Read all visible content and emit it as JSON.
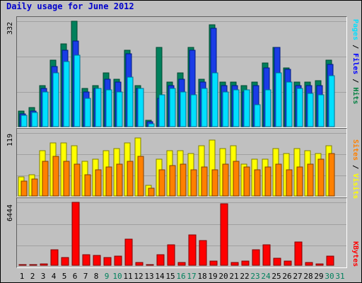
{
  "chart_data": {
    "type": "bar",
    "title": "Daily usage for June 2012",
    "categories": [
      "1",
      "2",
      "3",
      "4",
      "5",
      "6",
      "7",
      "8",
      "9",
      "10",
      "11",
      "12",
      "13",
      "14",
      "15",
      "16",
      "17",
      "18",
      "19",
      "20",
      "21",
      "22",
      "23",
      "24",
      "25",
      "26",
      "27",
      "28",
      "29",
      "30",
      "31"
    ],
    "weekend_days": [
      "9",
      "10",
      "16",
      "17",
      "23",
      "24",
      "30",
      "31"
    ],
    "panels": [
      {
        "id": "hits-files-pages",
        "ymax": 332,
        "legend": [
          {
            "label": "Pages",
            "color": "#00e0ff"
          },
          {
            "label": "Files",
            "color": "#0000ff"
          },
          {
            "label": "Hits",
            "color": "#008040"
          }
        ],
        "series": [
          {
            "name": "Hits",
            "color": "#00805c",
            "values": [
              50,
              60,
              130,
              210,
              260,
              332,
              120,
              130,
              170,
              150,
              240,
              130,
              20,
              250,
              140,
              170,
              250,
              150,
              320,
              140,
              140,
              130,
              140,
              200,
              250,
              185,
              140,
              140,
              145,
              210,
              0
            ]
          },
          {
            "name": "Files",
            "color": "#1a3ce6",
            "values": [
              40,
              50,
              120,
              190,
              240,
              270,
              110,
              120,
              150,
              140,
              230,
              120,
              15,
              90,
              130,
              150,
              240,
              140,
              310,
              130,
              130,
              110,
              130,
              185,
              250,
              180,
              130,
              130,
              130,
              195,
              0
            ]
          },
          {
            "name": "Pages",
            "color": "#00e0ff",
            "values": [
              35,
              45,
              110,
              170,
              205,
              225,
              90,
              120,
              115,
              110,
              155,
              120,
              10,
              100,
              120,
              110,
              100,
              120,
              170,
              110,
              115,
              115,
              70,
              115,
              170,
              140,
              120,
              105,
              100,
              160,
              0
            ]
          }
        ]
      },
      {
        "id": "visits-sites",
        "ymax": 119,
        "legend": [
          {
            "label": "Sites",
            "color": "#ff8000"
          },
          {
            "label": "Visits",
            "color": "#ffff00"
          }
        ],
        "series": [
          {
            "name": "Visits",
            "color": "#ffff00",
            "values": [
              36,
              40,
              85,
              100,
              100,
              95,
              65,
              70,
              85,
              90,
              100,
              110,
              20,
              70,
              85,
              85,
              80,
              95,
              105,
              90,
              95,
              60,
              70,
              70,
              90,
              80,
              90,
              85,
              80,
              95,
              0
            ]
          },
          {
            "name": "Sites",
            "color": "#ff8000",
            "values": [
              28,
              32,
              65,
              75,
              65,
              60,
              40,
              50,
              55,
              60,
              65,
              75,
              15,
              50,
              58,
              60,
              50,
              55,
              50,
              60,
              65,
              55,
              50,
              55,
              60,
              50,
              55,
              60,
              70,
              80,
              0
            ]
          }
        ]
      },
      {
        "id": "kbytes",
        "ymax": 6444,
        "legend": [
          {
            "label": "KBytes",
            "color": "#ff0000"
          }
        ],
        "series": [
          {
            "name": "KBytes",
            "color": "#ff0000",
            "values": [
              100,
              100,
              150,
              1600,
              800,
              6444,
              1100,
              1000,
              800,
              950,
              2700,
              300,
              100,
              1100,
              2100,
              300,
              3100,
              2500,
              400,
              6300,
              300,
              400,
              1600,
              2100,
              700,
              400,
              2400,
              300,
              150,
              950,
              0
            ]
          }
        ]
      }
    ]
  }
}
